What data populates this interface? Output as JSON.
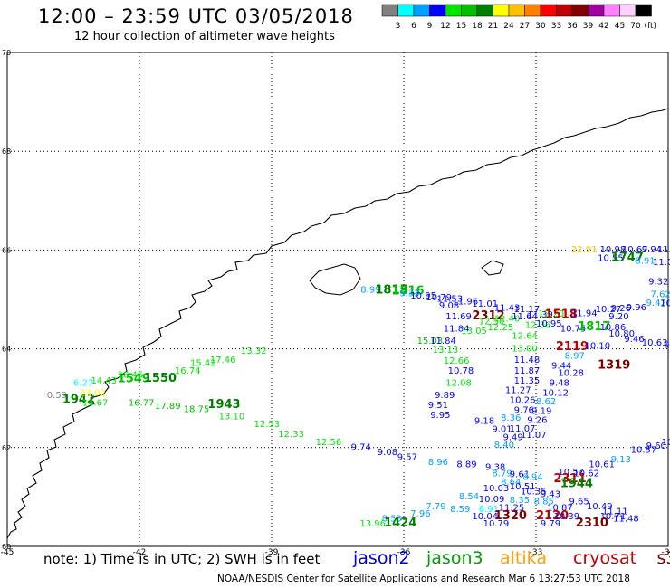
{
  "title": "12:00 – 23:59 UTC 03/05/2018",
  "subtitle": "12 hour collection of altimeter wave heights",
  "legend": {
    "unit": "(ft)",
    "bins": [
      {
        "label": "3",
        "color": "#808080"
      },
      {
        "label": "6",
        "color": "#00ffff"
      },
      {
        "label": "9",
        "color": "#00a0ff"
      },
      {
        "label": "12",
        "color": "#0000ff"
      },
      {
        "label": "15",
        "color": "#00e600"
      },
      {
        "label": "18",
        "color": "#00c000"
      },
      {
        "label": "21",
        "color": "#008000"
      },
      {
        "label": "24",
        "color": "#ffff00"
      },
      {
        "label": "27",
        "color": "#ffc000"
      },
      {
        "label": "30",
        "color": "#ff8000"
      },
      {
        "label": "33",
        "color": "#ff0000"
      },
      {
        "label": "36",
        "color": "#c00000"
      },
      {
        "label": "39",
        "color": "#800000"
      },
      {
        "label": "42",
        "color": "#a000a0"
      },
      {
        "label": "45",
        "color": "#ff80ff"
      },
      {
        "label": "70",
        "color": "#ffd0ff"
      },
      {
        "label": "",
        "color": "#000000"
      }
    ]
  },
  "axes": {
    "x_ticks": [
      "-45",
      "-42",
      "-39",
      "-36",
      "-33",
      "-30"
    ],
    "y_ticks": [
      "70",
      "68",
      "66",
      "64",
      "62",
      "60"
    ]
  },
  "note": "note:  1) Time is in UTC; 2) SWH is in feet",
  "satellites": [
    {
      "name": "jason2",
      "color": "#0000e0"
    },
    {
      "name": "jason3",
      "color": "#00a000"
    },
    {
      "name": "altika",
      "color": "#ffa000"
    },
    {
      "name": "cryosat",
      "color": "#c00000"
    },
    {
      "name": "s3a",
      "color": "#800000"
    }
  ],
  "footer": "NOAA/NESDIS Center for Satellite Applications and Research     Mar  6 13:27:53 UTC 2018",
  "observations": [
    {
      "lon": -36.98,
      "lat": 65.14,
      "text": "8.99",
      "color": "#00a0ff"
    },
    {
      "lon": -36.65,
      "lat": 65.12,
      "text": "1815",
      "color": "#008000"
    },
    {
      "lon": -36.28,
      "lat": 65.1,
      "text": "1816",
      "color": "#00c000"
    },
    {
      "lon": -36.1,
      "lat": 65.06,
      "text": "9.33",
      "color": "#00a0ff"
    },
    {
      "lon": -35.85,
      "lat": 65.02,
      "text": "10.95",
      "color": "#0000ff"
    },
    {
      "lon": -35.5,
      "lat": 64.98,
      "text": "10.79",
      "color": "#0000ff"
    },
    {
      "lon": -35.25,
      "lat": 64.95,
      "text": "11.53",
      "color": "#0000ff"
    },
    {
      "lon": -35.2,
      "lat": 64.82,
      "text": "9.08",
      "color": "#0000ff"
    },
    {
      "lon": -34.9,
      "lat": 64.9,
      "text": "11.96",
      "color": "#0000ff"
    },
    {
      "lon": -34.45,
      "lat": 64.85,
      "text": "11.01",
      "color": "#0000ff"
    },
    {
      "lon": -33.95,
      "lat": 64.77,
      "text": "11.43",
      "color": "#0000ff"
    },
    {
      "lon": -33.5,
      "lat": 64.74,
      "text": "11.17",
      "color": "#0000ff"
    },
    {
      "lon": -35.05,
      "lat": 64.6,
      "text": "11.69",
      "color": "#0000ff"
    },
    {
      "lon": -34.45,
      "lat": 64.6,
      "text": "2312",
      "color": "#800000"
    },
    {
      "lon": -34.3,
      "lat": 64.5,
      "text": "12.50",
      "color": "#00e600"
    },
    {
      "lon": -33.95,
      "lat": 64.55,
      "text": "12.40",
      "color": "#00e600"
    },
    {
      "lon": -33.55,
      "lat": 64.6,
      "text": "11.64",
      "color": "#0000ff"
    },
    {
      "lon": -33.2,
      "lat": 64.63,
      "text": "11.39",
      "color": "#0000ff"
    },
    {
      "lon": -32.95,
      "lat": 64.65,
      "text": "12.20",
      "color": "#00e600"
    },
    {
      "lon": -32.8,
      "lat": 64.62,
      "text": "1518",
      "color": "#c00000"
    },
    {
      "lon": -32.2,
      "lat": 64.66,
      "text": "11.94",
      "color": "#0000ff"
    },
    {
      "lon": -31.65,
      "lat": 64.74,
      "text": "10.27",
      "color": "#0000ff"
    },
    {
      "lon": -31.3,
      "lat": 64.76,
      "text": "9.26",
      "color": "#0000ff"
    },
    {
      "lon": -30.95,
      "lat": 64.78,
      "text": "9.96",
      "color": "#0000ff"
    },
    {
      "lon": -31.35,
      "lat": 64.6,
      "text": "9.20",
      "color": "#0000ff"
    },
    {
      "lon": -30.5,
      "lat": 64.87,
      "text": "9.42",
      "color": "#00a0ff"
    },
    {
      "lon": -30.18,
      "lat": 64.86,
      "text": "10.26",
      "color": "#0000ff"
    },
    {
      "lon": -29.9,
      "lat": 64.88,
      "text": "11.",
      "color": "#0000ff"
    },
    {
      "lon": -30.4,
      "lat": 65.05,
      "text": "7.62",
      "color": "#00a0ff"
    },
    {
      "lon": -30.45,
      "lat": 65.3,
      "text": "9.32",
      "color": "#0000ff"
    },
    {
      "lon": -35.1,
      "lat": 64.35,
      "text": "11.84",
      "color": "#0000ff"
    },
    {
      "lon": -34.7,
      "lat": 64.3,
      "text": "13.05",
      "color": "#00e600"
    },
    {
      "lon": -34.1,
      "lat": 64.38,
      "text": "12.25",
      "color": "#00e600"
    },
    {
      "lon": -33.25,
      "lat": 64.42,
      "text": "12.36",
      "color": "#00e600"
    },
    {
      "lon": -33.0,
      "lat": 64.45,
      "text": "10.95",
      "color": "#0000ff"
    },
    {
      "lon": -32.45,
      "lat": 64.35,
      "text": "10.75",
      "color": "#0000ff"
    },
    {
      "lon": -32.05,
      "lat": 64.38,
      "text": "1817",
      "color": "#00c000"
    },
    {
      "lon": -31.55,
      "lat": 64.38,
      "text": "10.86",
      "color": "#0000ff"
    },
    {
      "lon": -31.35,
      "lat": 64.25,
      "text": "10.80",
      "color": "#0000ff"
    },
    {
      "lon": -31.0,
      "lat": 64.14,
      "text": "9.46",
      "color": "#0000ff"
    },
    {
      "lon": -30.6,
      "lat": 64.07,
      "text": "10.63",
      "color": "#0000ff"
    },
    {
      "lon": -30.1,
      "lat": 64.02,
      "text": "9.65",
      "color": "#0000ff"
    },
    {
      "lon": -33.55,
      "lat": 64.2,
      "text": "12.64",
      "color": "#00e600"
    },
    {
      "lon": -35.7,
      "lat": 64.1,
      "text": "15.03",
      "color": "#00c000"
    },
    {
      "lon": -35.4,
      "lat": 64.1,
      "text": "11.84",
      "color": "#0000ff"
    },
    {
      "lon": -35.35,
      "lat": 63.92,
      "text": "13.13",
      "color": "#00e600"
    },
    {
      "lon": -33.55,
      "lat": 63.95,
      "text": "13.00",
      "color": "#00e600"
    },
    {
      "lon": -32.55,
      "lat": 63.97,
      "text": "2119",
      "color": "#c00000"
    },
    {
      "lon": -31.9,
      "lat": 64.0,
      "text": "10.10",
      "color": "#0000ff"
    },
    {
      "lon": -32.35,
      "lat": 63.8,
      "text": "8.97",
      "color": "#00a0ff"
    },
    {
      "lon": -33.5,
      "lat": 63.72,
      "text": "11.48",
      "color": "#0000ff"
    },
    {
      "lon": -32.65,
      "lat": 63.6,
      "text": "9.44",
      "color": "#0000ff"
    },
    {
      "lon": -31.6,
      "lat": 63.6,
      "text": "1319",
      "color": "#800000"
    },
    {
      "lon": -32.5,
      "lat": 63.45,
      "text": "10.28",
      "color": "#0000ff"
    },
    {
      "lon": -35.1,
      "lat": 63.7,
      "text": "12.66",
      "color": "#00e600"
    },
    {
      "lon": -35.0,
      "lat": 63.5,
      "text": "10.78",
      "color": "#0000ff"
    },
    {
      "lon": -33.5,
      "lat": 63.5,
      "text": "11.87",
      "color": "#0000ff"
    },
    {
      "lon": -33.5,
      "lat": 63.3,
      "text": "11.35",
      "color": "#0000ff"
    },
    {
      "lon": -32.7,
      "lat": 63.25,
      "text": "9.48",
      "color": "#0000ff"
    },
    {
      "lon": -35.05,
      "lat": 63.25,
      "text": "12.08",
      "color": "#00e600"
    },
    {
      "lon": -33.7,
      "lat": 63.1,
      "text": "11.27",
      "color": "#0000ff"
    },
    {
      "lon": -32.85,
      "lat": 63.05,
      "text": "10.12",
      "color": "#0000ff"
    },
    {
      "lon": -35.3,
      "lat": 63.0,
      "text": "9.89",
      "color": "#0000ff"
    },
    {
      "lon": -33.6,
      "lat": 62.9,
      "text": "10.26",
      "color": "#0000ff"
    },
    {
      "lon": -33.0,
      "lat": 62.88,
      "text": "8.62",
      "color": "#00a0ff"
    },
    {
      "lon": -35.45,
      "lat": 62.8,
      "text": "9.51",
      "color": "#0000ff"
    },
    {
      "lon": -33.5,
      "lat": 62.7,
      "text": "9.76",
      "color": "#0000ff"
    },
    {
      "lon": -33.1,
      "lat": 62.68,
      "text": "9.19",
      "color": "#0000ff"
    },
    {
      "lon": -35.4,
      "lat": 62.6,
      "text": "9.95",
      "color": "#0000ff"
    },
    {
      "lon": -33.8,
      "lat": 62.55,
      "text": "8.36",
      "color": "#00a0ff"
    },
    {
      "lon": -33.2,
      "lat": 62.5,
      "text": "9.26",
      "color": "#0000ff"
    },
    {
      "lon": -34.4,
      "lat": 62.48,
      "text": "9.18",
      "color": "#0000ff"
    },
    {
      "lon": -34.0,
      "lat": 62.32,
      "text": "9.01",
      "color": "#0000ff"
    },
    {
      "lon": -33.6,
      "lat": 62.33,
      "text": "11.07",
      "color": "#0000ff"
    },
    {
      "lon": -33.75,
      "lat": 62.15,
      "text": "9.49",
      "color": "#0000ff"
    },
    {
      "lon": -33.35,
      "lat": 62.2,
      "text": "11.07",
      "color": "#0000ff"
    },
    {
      "lon": -33.95,
      "lat": 62.0,
      "text": "8.40",
      "color": "#00a0ff"
    },
    {
      "lon": -44.1,
      "lat": 63.0,
      "text": "0.59",
      "color": "#808080"
    },
    {
      "lon": -43.75,
      "lat": 62.9,
      "text": "1942",
      "color": "#008000"
    },
    {
      "lon": -43.35,
      "lat": 63.05,
      "text": "23.02",
      "color": "#ffff00"
    },
    {
      "lon": -43.5,
      "lat": 63.25,
      "text": "6.27",
      "color": "#00ffff"
    },
    {
      "lon": -43.1,
      "lat": 63.3,
      "text": "14.43",
      "color": "#00e600"
    },
    {
      "lon": -42.5,
      "lat": 63.32,
      "text": "1549",
      "color": "#00c000"
    },
    {
      "lon": -41.9,
      "lat": 63.33,
      "text": "1550",
      "color": "#008000"
    },
    {
      "lon": -41.2,
      "lat": 63.5,
      "text": "16.74",
      "color": "#00e600"
    },
    {
      "lon": -40.85,
      "lat": 63.65,
      "text": "15.42",
      "color": "#00e600"
    },
    {
      "lon": -40.4,
      "lat": 63.72,
      "text": "17.46",
      "color": "#00e600"
    },
    {
      "lon": -39.7,
      "lat": 63.9,
      "text": "13.32",
      "color": "#00e600"
    },
    {
      "lon": -42.5,
      "lat": 63.42,
      "text": "16.45",
      "color": "#00e600"
    },
    {
      "lon": -43.3,
      "lat": 62.85,
      "text": "14.67",
      "color": "#00e600"
    },
    {
      "lon": -42.25,
      "lat": 62.85,
      "text": "16.77",
      "color": "#00c000"
    },
    {
      "lon": -41.65,
      "lat": 62.78,
      "text": "17.89",
      "color": "#00c000"
    },
    {
      "lon": -41.0,
      "lat": 62.72,
      "text": "18.75",
      "color": "#00c000"
    },
    {
      "lon": -40.45,
      "lat": 62.8,
      "text": "1943",
      "color": "#008000"
    },
    {
      "lon": -40.2,
      "lat": 62.57,
      "text": "13.10",
      "color": "#00e600"
    },
    {
      "lon": -39.4,
      "lat": 62.42,
      "text": "12.53",
      "color": "#00e600"
    },
    {
      "lon": -38.85,
      "lat": 62.22,
      "text": "12.33",
      "color": "#00e600"
    },
    {
      "lon": -38.0,
      "lat": 62.05,
      "text": "12.56",
      "color": "#00e600"
    },
    {
      "lon": -37.2,
      "lat": 61.95,
      "text": "9.74",
      "color": "#0000ff"
    },
    {
      "lon": -36.6,
      "lat": 61.85,
      "text": "9.08",
      "color": "#0000ff"
    },
    {
      "lon": -36.15,
      "lat": 61.75,
      "text": "9.57",
      "color": "#0000ff"
    },
    {
      "lon": -35.45,
      "lat": 61.65,
      "text": "8.96",
      "color": "#00a0ff"
    },
    {
      "lon": -34.8,
      "lat": 61.6,
      "text": "8.89",
      "color": "#0000ff"
    },
    {
      "lon": -34.15,
      "lat": 61.55,
      "text": "9.38",
      "color": "#0000ff"
    },
    {
      "lon": -34.0,
      "lat": 61.42,
      "text": "8.79",
      "color": "#00a0ff"
    },
    {
      "lon": -33.6,
      "lat": 61.4,
      "text": "9.61",
      "color": "#0000ff"
    },
    {
      "lon": -33.3,
      "lat": 61.35,
      "text": "8.94",
      "color": "#00a0ff"
    },
    {
      "lon": -33.8,
      "lat": 61.25,
      "text": "8.64",
      "color": "#00a0ff"
    },
    {
      "lon": -32.5,
      "lat": 61.45,
      "text": "10.57",
      "color": "#0000ff"
    },
    {
      "lon": -32.15,
      "lat": 61.42,
      "text": "10.62",
      "color": "#0000ff"
    },
    {
      "lon": -31.8,
      "lat": 61.6,
      "text": "10.61",
      "color": "#0000ff"
    },
    {
      "lon": -31.3,
      "lat": 61.7,
      "text": "9.13",
      "color": "#00a0ff"
    },
    {
      "lon": -30.85,
      "lat": 61.9,
      "text": "10.57",
      "color": "#0000ff"
    },
    {
      "lon": -30.5,
      "lat": 61.98,
      "text": "9.60",
      "color": "#0000ff"
    },
    {
      "lon": -30.15,
      "lat": 62.05,
      "text": "10.98",
      "color": "#0000ff"
    },
    {
      "lon": -29.95,
      "lat": 62.15,
      "text": "10.",
      "color": "#0000ff"
    },
    {
      "lon": -32.6,
      "lat": 61.3,
      "text": "2311",
      "color": "#c00000"
    },
    {
      "lon": -32.45,
      "lat": 61.2,
      "text": "1944",
      "color": "#008000"
    },
    {
      "lon": -34.2,
      "lat": 61.12,
      "text": "10.03",
      "color": "#0000ff"
    },
    {
      "lon": -33.6,
      "lat": 61.15,
      "text": "10.51",
      "color": "#0000ff"
    },
    {
      "lon": -33.35,
      "lat": 61.05,
      "text": "10.35",
      "color": "#0000ff"
    },
    {
      "lon": -32.9,
      "lat": 61.0,
      "text": "9.43",
      "color": "#0000ff"
    },
    {
      "lon": -34.75,
      "lat": 60.95,
      "text": "8.54",
      "color": "#00a0ff"
    },
    {
      "lon": -34.3,
      "lat": 60.9,
      "text": "10.09",
      "color": "#0000ff"
    },
    {
      "lon": -33.6,
      "lat": 60.88,
      "text": "8.35",
      "color": "#00a0ff"
    },
    {
      "lon": -33.05,
      "lat": 60.85,
      "text": "8.85",
      "color": "#00a0ff"
    },
    {
      "lon": -32.25,
      "lat": 60.85,
      "text": "9.65",
      "color": "#0000ff"
    },
    {
      "lon": -31.85,
      "lat": 60.75,
      "text": "10.49",
      "color": "#0000ff"
    },
    {
      "lon": -35.5,
      "lat": 60.75,
      "text": "7.79",
      "color": "#00a0ff"
    },
    {
      "lon": -34.95,
      "lat": 60.7,
      "text": "8.59",
      "color": "#00a0ff"
    },
    {
      "lon": -34.3,
      "lat": 60.7,
      "text": "6.91",
      "color": "#00ffff"
    },
    {
      "lon": -33.85,
      "lat": 60.72,
      "text": "11.25",
      "color": "#0000ff"
    },
    {
      "lon": -32.75,
      "lat": 60.72,
      "text": "10.87",
      "color": "#0000ff"
    },
    {
      "lon": -31.5,
      "lat": 60.65,
      "text": "11.11",
      "color": "#0000ff"
    },
    {
      "lon": -35.85,
      "lat": 60.6,
      "text": "7.96",
      "color": "#00a0ff"
    },
    {
      "lon": -34.45,
      "lat": 60.55,
      "text": "10.04",
      "color": "#0000ff"
    },
    {
      "lon": -33.95,
      "lat": 60.55,
      "text": "1320",
      "color": "#800000"
    },
    {
      "lon": -33.0,
      "lat": 60.55,
      "text": "2120",
      "color": "#c00000"
    },
    {
      "lon": -32.6,
      "lat": 60.55,
      "text": "10.39",
      "color": "#0000ff"
    },
    {
      "lon": -31.25,
      "lat": 60.5,
      "text": "11.48",
      "color": "#0000ff"
    },
    {
      "lon": -31.55,
      "lat": 60.55,
      "text": "10.71",
      "color": "#0000ff"
    },
    {
      "lon": -36.5,
      "lat": 60.5,
      "text": "8.53",
      "color": "#00a0ff"
    },
    {
      "lon": -34.2,
      "lat": 60.4,
      "text": "10.79",
      "color": "#0000ff"
    },
    {
      "lon": -32.9,
      "lat": 60.4,
      "text": "9.79",
      "color": "#0000ff"
    },
    {
      "lon": -32.1,
      "lat": 60.4,
      "text": "2310",
      "color": "#800000"
    },
    {
      "lon": -37.0,
      "lat": 60.4,
      "text": "13.96",
      "color": "#00e600"
    },
    {
      "lon": -36.45,
      "lat": 60.4,
      "text": "1424",
      "color": "#008000"
    },
    {
      "lon": -32.2,
      "lat": 65.95,
      "text": "22.91",
      "color": "#ffc000"
    },
    {
      "lon": -31.55,
      "lat": 65.95,
      "text": "10.98",
      "color": "#0000ff"
    },
    {
      "lon": -31.05,
      "lat": 65.95,
      "text": "10.67",
      "color": "#0000ff"
    },
    {
      "lon": -30.6,
      "lat": 65.95,
      "text": "9.94",
      "color": "#0000ff"
    },
    {
      "lon": -30.25,
      "lat": 65.95,
      "text": "11.46",
      "color": "#0000ff"
    },
    {
      "lon": -31.6,
      "lat": 65.78,
      "text": "10.55",
      "color": "#0000ff"
    },
    {
      "lon": -31.3,
      "lat": 65.78,
      "text": "1747",
      "color": "#008000"
    },
    {
      "lon": -30.75,
      "lat": 65.72,
      "text": "8.91",
      "color": "#00a0ff"
    },
    {
      "lon": -30.35,
      "lat": 65.7,
      "text": "11.05",
      "color": "#0000ff"
    },
    {
      "lon": -29.95,
      "lat": 65.85,
      "text": "10.",
      "color": "#0000ff"
    }
  ]
}
